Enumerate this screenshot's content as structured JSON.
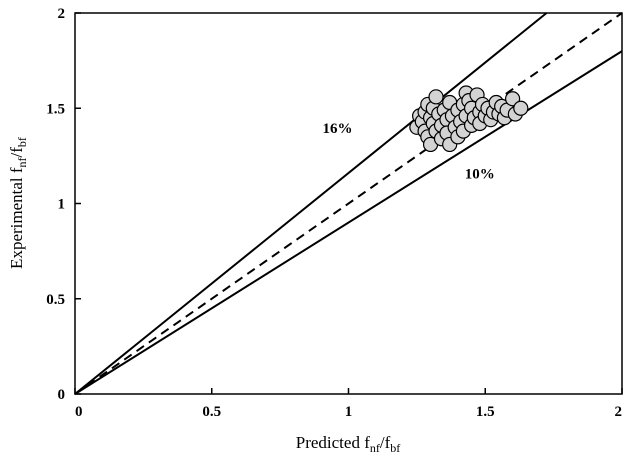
{
  "chart_data": {
    "type": "scatter",
    "title": "",
    "xlabel": {
      "main": "Predicted f",
      "sub1": "nf",
      "mid": "/f",
      "sub2": "bf"
    },
    "ylabel": {
      "main": "Experimental f",
      "sub1": "nf",
      "mid": "/f",
      "sub2": "bf"
    },
    "xlim": [
      0,
      2
    ],
    "ylim": [
      0,
      2
    ],
    "x_ticks": [
      0,
      0.5,
      1,
      1.5,
      2
    ],
    "y_ticks": [
      0,
      0.5,
      1,
      1.5,
      2
    ],
    "x_tick_labels": [
      "0",
      "0.5",
      "1",
      "1.5",
      "2"
    ],
    "y_tick_labels": [
      "0",
      "0.5",
      "1",
      "1.5",
      "2"
    ],
    "grid": false,
    "legend": "none",
    "reference_lines": [
      {
        "kind": "dashed",
        "slope": 1.0,
        "label": ""
      },
      {
        "kind": "solid",
        "slope": 1.16,
        "label": "16%"
      },
      {
        "kind": "solid",
        "slope": 0.9,
        "label": "10%"
      }
    ],
    "annotations": [
      {
        "text": "16%",
        "x": 0.96,
        "y": 1.37
      },
      {
        "text": "10%",
        "x": 1.48,
        "y": 1.13
      }
    ],
    "marker_fill": "#d3d3d3",
    "marker_edge": "#000000",
    "points": [
      [
        1.25,
        1.4
      ],
      [
        1.26,
        1.46
      ],
      [
        1.27,
        1.43
      ],
      [
        1.28,
        1.38
      ],
      [
        1.28,
        1.48
      ],
      [
        1.29,
        1.52
      ],
      [
        1.29,
        1.35
      ],
      [
        1.3,
        1.45
      ],
      [
        1.3,
        1.31
      ],
      [
        1.31,
        1.42
      ],
      [
        1.31,
        1.5
      ],
      [
        1.32,
        1.56
      ],
      [
        1.32,
        1.38
      ],
      [
        1.33,
        1.47
      ],
      [
        1.34,
        1.34
      ],
      [
        1.34,
        1.41
      ],
      [
        1.35,
        1.49
      ],
      [
        1.36,
        1.44
      ],
      [
        1.36,
        1.37
      ],
      [
        1.37,
        1.31
      ],
      [
        1.37,
        1.53
      ],
      [
        1.38,
        1.46
      ],
      [
        1.39,
        1.4
      ],
      [
        1.4,
        1.49
      ],
      [
        1.4,
        1.35
      ],
      [
        1.41,
        1.43
      ],
      [
        1.42,
        1.52
      ],
      [
        1.42,
        1.38
      ],
      [
        1.43,
        1.58
      ],
      [
        1.43,
        1.46
      ],
      [
        1.44,
        1.54
      ],
      [
        1.45,
        1.41
      ],
      [
        1.45,
        1.5
      ],
      [
        1.46,
        1.45
      ],
      [
        1.47,
        1.57
      ],
      [
        1.48,
        1.48
      ],
      [
        1.48,
        1.42
      ],
      [
        1.49,
        1.52
      ],
      [
        1.5,
        1.46
      ],
      [
        1.51,
        1.5
      ],
      [
        1.52,
        1.44
      ],
      [
        1.53,
        1.48
      ],
      [
        1.54,
        1.53
      ],
      [
        1.55,
        1.47
      ],
      [
        1.56,
        1.51
      ],
      [
        1.57,
        1.45
      ],
      [
        1.58,
        1.49
      ],
      [
        1.6,
        1.55
      ],
      [
        1.61,
        1.47
      ],
      [
        1.63,
        1.5
      ]
    ]
  }
}
